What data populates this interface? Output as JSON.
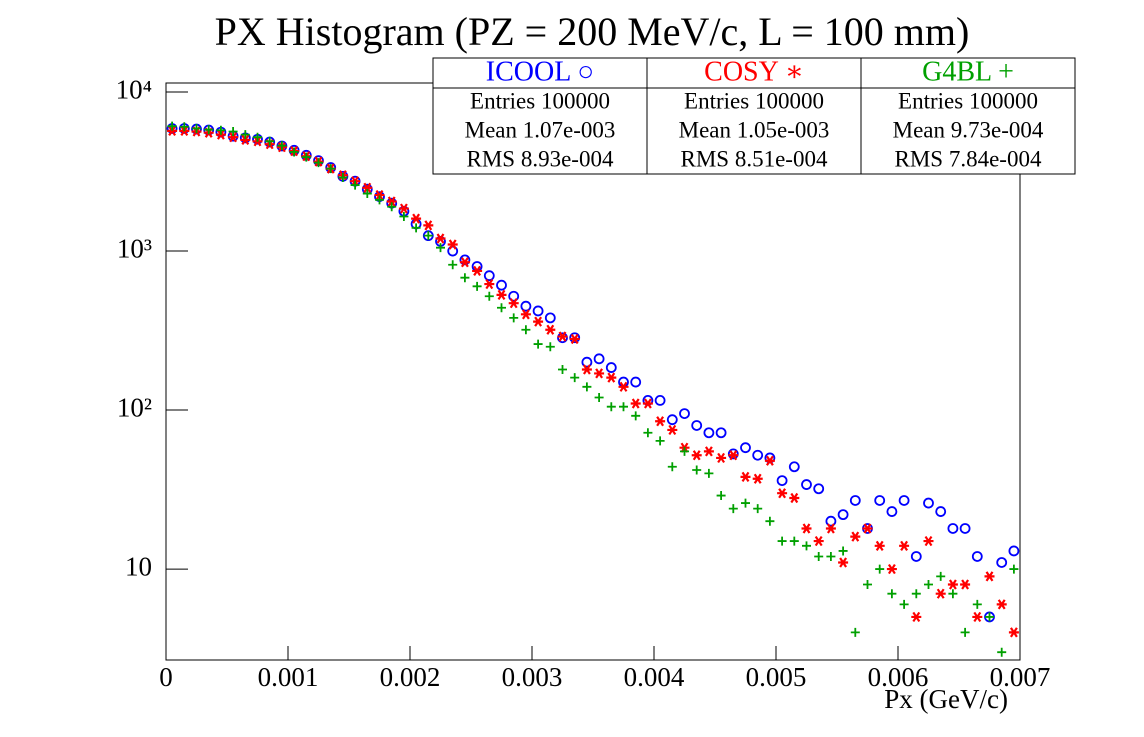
{
  "chart_data": {
    "type": "scatter",
    "title": "PX Histogram (PZ = 200 MeV/c, L = 100 mm)",
    "x_label": "Px (GeV/c)",
    "log_y": true,
    "xlim": [
      0,
      0.007
    ],
    "ylim": [
      2.68,
      11400
    ],
    "xticks": [
      0,
      0.001,
      0.002,
      0.003,
      0.004,
      0.005,
      0.006,
      0.007
    ],
    "yticks": [
      10,
      {
        "value": 100,
        "label": "10²"
      },
      {
        "value": 1000,
        "label": "10³"
      },
      {
        "value": 10000,
        "label": "10⁴"
      }
    ],
    "x": [
      5e-05,
      0.00015,
      0.00025,
      0.00035,
      0.00045,
      0.00055,
      0.00065,
      0.00075,
      0.00085,
      0.00095,
      0.00105,
      0.00115,
      0.00125,
      0.00135,
      0.00145,
      0.00155,
      0.00165,
      0.00175,
      0.00185,
      0.00195,
      0.00205,
      0.00215,
      0.00225,
      0.00235,
      0.00245,
      0.00255,
      0.00265,
      0.00275,
      0.00285,
      0.00295,
      0.00305,
      0.00315,
      0.00325,
      0.00335,
      0.00345,
      0.00355,
      0.00365,
      0.00375,
      0.00385,
      0.00395,
      0.00405,
      0.00415,
      0.00425,
      0.00435,
      0.00445,
      0.00455,
      0.00465,
      0.00475,
      0.00485,
      0.00495,
      0.00505,
      0.00515,
      0.00525,
      0.00535,
      0.00545,
      0.00555,
      0.00565,
      0.00575,
      0.00585,
      0.00595,
      0.00605,
      0.00615,
      0.00625,
      0.00635,
      0.00645,
      0.00655,
      0.00665,
      0.00675,
      0.00685,
      0.00695
    ],
    "series": [
      {
        "name": "ICOOL ○",
        "color": "#0000ff",
        "marker": "circle",
        "values": [
          5900,
          5900,
          5850,
          5770,
          5600,
          5280,
          5150,
          5050,
          4850,
          4580,
          4300,
          4000,
          3700,
          3350,
          2950,
          2750,
          2450,
          2200,
          2000,
          1780,
          1480,
          1250,
          1150,
          1000,
          880,
          800,
          700,
          610,
          520,
          450,
          420,
          380,
          285,
          285,
          200,
          210,
          185,
          150,
          150,
          115,
          115,
          87,
          95,
          80,
          72,
          72,
          53,
          58,
          52,
          50,
          36,
          44,
          34,
          32,
          20,
          22,
          27,
          18,
          27,
          23,
          27,
          12,
          26,
          23,
          18,
          18,
          12,
          5,
          11,
          13
        ]
      },
      {
        "name": "COSY ∗",
        "color": "#ff0000",
        "marker": "star",
        "values": [
          5700,
          5700,
          5650,
          5550,
          5400,
          5200,
          5000,
          4900,
          4700,
          4500,
          4250,
          3950,
          3650,
          3300,
          3000,
          2750,
          2500,
          2250,
          2050,
          1850,
          1600,
          1450,
          1200,
          1100,
          850,
          750,
          620,
          530,
          470,
          400,
          360,
          320,
          290,
          280,
          180,
          170,
          160,
          140,
          110,
          110,
          85,
          75,
          58,
          52,
          55,
          50,
          52,
          38,
          37,
          48,
          30,
          28,
          18,
          15,
          18,
          11,
          16,
          18,
          14,
          10,
          14,
          5,
          15,
          7,
          8,
          8,
          5,
          9,
          6,
          4
        ]
      },
      {
        "name": "G4BL +",
        "color": "#00a000",
        "marker": "plus",
        "values": [
          6100,
          6050,
          5900,
          5800,
          5750,
          5650,
          5400,
          5200,
          4900,
          4600,
          4200,
          3900,
          3600,
          3300,
          2900,
          2600,
          2300,
          2100,
          1900,
          1650,
          1400,
          1250,
          1050,
          820,
          680,
          600,
          520,
          440,
          380,
          320,
          260,
          250,
          180,
          160,
          140,
          120,
          105,
          105,
          92,
          72,
          64,
          44,
          55,
          42,
          40,
          29,
          24,
          26,
          24,
          20,
          15,
          15,
          14,
          12,
          12,
          13,
          4,
          8,
          10,
          7,
          6,
          7,
          8,
          9,
          7,
          4,
          6,
          5,
          3,
          10
        ]
      }
    ],
    "stats": [
      {
        "rows": [
          "Entries 100000",
          "Mean 1.07e-003",
          "RMS 8.93e-004"
        ]
      },
      {
        "rows": [
          "Entries 100000",
          "Mean 1.05e-003",
          "RMS 8.51e-004"
        ]
      },
      {
        "rows": [
          "Entries 100000",
          "Mean 9.73e-004",
          "RMS 7.84e-004"
        ]
      }
    ]
  }
}
